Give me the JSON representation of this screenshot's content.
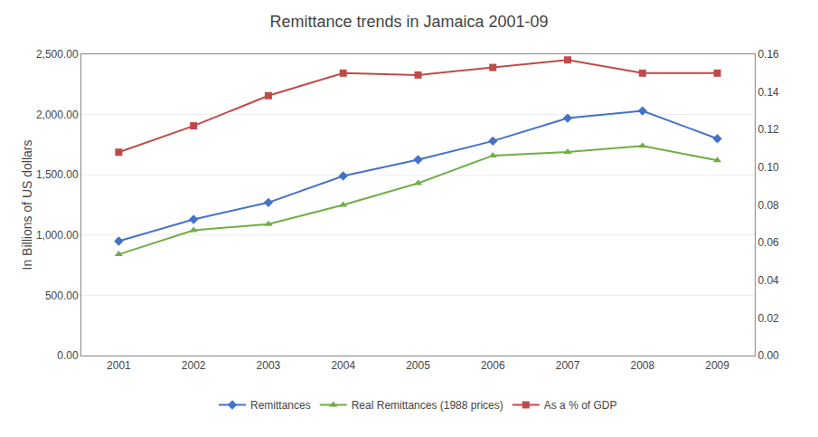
{
  "chart_data": {
    "type": "line",
    "title": "Remittance trends in Jamaica 2001-09",
    "x": [
      2001,
      2002,
      2003,
      2004,
      2005,
      2006,
      2007,
      2008,
      2009
    ],
    "xlim": [
      2000.5,
      2009.5
    ],
    "xticks": [
      2001,
      2002,
      2003,
      2004,
      2005,
      2006,
      2007,
      2008,
      2009
    ],
    "ylabel": "In Billions of US dollars",
    "ylim": [
      0,
      2500
    ],
    "yticks": [
      {
        "value": 0,
        "label": "0.00"
      },
      {
        "value": 500,
        "label": "500.00"
      },
      {
        "value": 1000,
        "label": "1,000.00"
      },
      {
        "value": 1500,
        "label": "1,500.00"
      },
      {
        "value": 2000,
        "label": "2,000.00"
      },
      {
        "value": 2500,
        "label": "2,500.00"
      }
    ],
    "y2lim": [
      0,
      0.16
    ],
    "y2ticks": [
      {
        "value": 0.0,
        "label": "0.00"
      },
      {
        "value": 0.02,
        "label": "0.02"
      },
      {
        "value": 0.04,
        "label": "0.04"
      },
      {
        "value": 0.06,
        "label": "0.06"
      },
      {
        "value": 0.08,
        "label": "0.08"
      },
      {
        "value": 0.1,
        "label": "0.10"
      },
      {
        "value": 0.12,
        "label": "0.12"
      },
      {
        "value": 0.14,
        "label": "0.14"
      },
      {
        "value": 0.16,
        "label": "0.16"
      }
    ],
    "grid": "y",
    "legend": "bottom",
    "series": [
      {
        "name": "Remittances",
        "color": "#4472C4",
        "marker": "diamond",
        "values": [
          950,
          1130,
          1270,
          1490,
          1625,
          1780,
          1970,
          2030,
          1800
        ]
      },
      {
        "name": "Real Remittances (1988 prices)",
        "color": "#70AD47",
        "marker": "triangle-up",
        "values": [
          840,
          1040,
          1090,
          1250,
          1430,
          1660,
          1690,
          1740,
          1620
        ]
      },
      {
        "name": "As a % of GDP",
        "color": "#BE4B48",
        "marker": "square",
        "axis": "y2",
        "values": [
          0.108,
          0.122,
          0.138,
          0.15,
          0.149,
          0.153,
          0.157,
          0.15,
          0.15
        ]
      }
    ]
  }
}
